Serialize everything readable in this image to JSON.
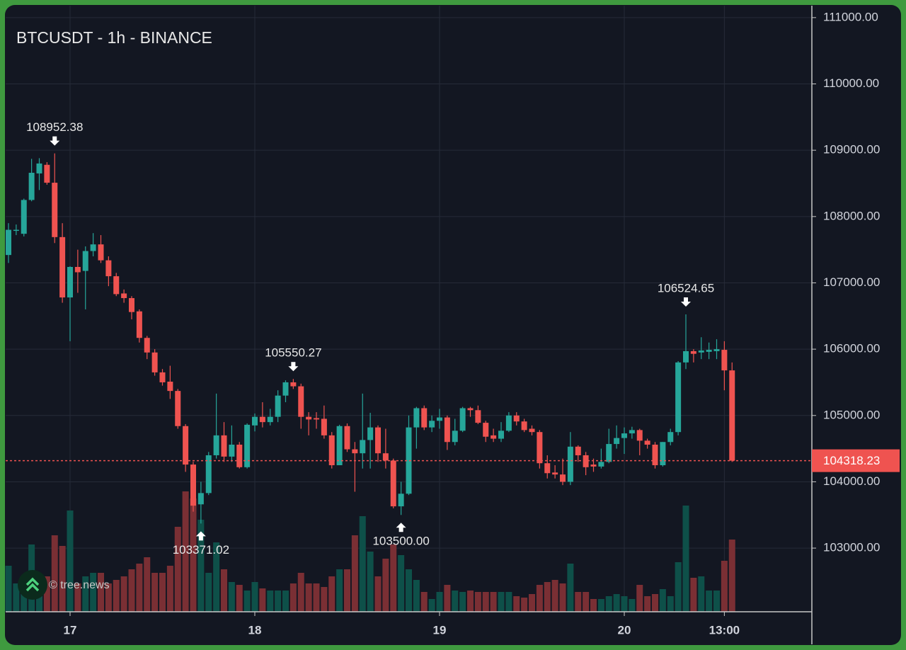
{
  "chart_data": {
    "type": "candlestick",
    "title": "BTCUSDT - 1h - BINANCE",
    "watermark": "© tree.news",
    "categories": [
      null,
      null,
      null,
      null,
      null,
      null,
      null,
      null,
      "17",
      null,
      null,
      null,
      null,
      null,
      null,
      null,
      null,
      null,
      null,
      null,
      null,
      null,
      null,
      null,
      null,
      null,
      null,
      null,
      null,
      null,
      null,
      null,
      "18",
      null,
      null,
      null,
      null,
      null,
      null,
      null,
      null,
      null,
      null,
      null,
      null,
      null,
      null,
      null,
      null,
      null,
      null,
      null,
      null,
      null,
      null,
      null,
      "19",
      null,
      null,
      null,
      null,
      null,
      null,
      null,
      null,
      null,
      null,
      null,
      null,
      null,
      null,
      null,
      null,
      null,
      null,
      null,
      null,
      null,
      null,
      null,
      "20",
      null,
      null,
      null,
      null,
      null,
      null,
      null,
      null,
      null,
      null,
      null,
      null,
      "13:00",
      null
    ],
    "open": [
      107420,
      107790,
      107740,
      108250,
      108650,
      108780,
      108510,
      107690,
      106780,
      107240,
      107180,
      107480,
      107580,
      107340,
      107100,
      106840,
      106770,
      106570,
      106170,
      105950,
      105650,
      105510,
      105370,
      104840,
      104260,
      103660,
      103830,
      104400,
      104700,
      104380,
      104560,
      104220,
      104850,
      104980,
      104900,
      104980,
      105300,
      105500,
      105440,
      104980,
      104960,
      104950,
      104700,
      104250,
      104840,
      104490,
      104430,
      104630,
      104820,
      104430,
      104320,
      103630,
      103820,
      104820,
      105110,
      104820,
      104920,
      104970,
      104600,
      104770,
      105110,
      105080,
      104890,
      104700,
      104650,
      104770,
      105000,
      104910,
      104800,
      104750,
      104280,
      104140,
      104110,
      104000,
      104530,
      104400,
      104260,
      104230,
      104300,
      104570,
      104660,
      104730,
      104780,
      104620,
      104560,
      104250,
      104600,
      104750,
      105800,
      105970,
      105950,
      105960,
      105970,
      105990,
      105680
    ],
    "high": [
      107900,
      107880,
      108270,
      108870,
      108880,
      108820,
      108952.38,
      107900,
      107250,
      107500,
      107550,
      107750,
      107720,
      107400,
      107150,
      106900,
      106800,
      106600,
      106200,
      106000,
      105700,
      105750,
      105400,
      104870,
      104300,
      104000,
      104450,
      105330,
      104900,
      104850,
      104600,
      104880,
      105030,
      105200,
      105100,
      105380,
      105530,
      105550.27,
      105480,
      105050,
      105050,
      105150,
      104750,
      104860,
      104880,
      104600,
      105330,
      105040,
      104850,
      104800,
      104350,
      104000,
      105000,
      105130,
      105150,
      105000,
      105100,
      105000,
      104950,
      105130,
      105130,
      105150,
      104920,
      104800,
      104900,
      105050,
      105050,
      104950,
      104850,
      104780,
      104400,
      104250,
      104350,
      104750,
      104550,
      104450,
      104350,
      104500,
      104800,
      104850,
      104820,
      104830,
      104800,
      104650,
      104600,
      104600,
      104800,
      105820,
      106524.65,
      106000,
      106180,
      106100,
      106150,
      106120,
      105800
    ],
    "low": [
      107300,
      107720,
      107700,
      108230,
      108400,
      108480,
      107600,
      106700,
      106120,
      106850,
      106600,
      107400,
      107300,
      106950,
      106800,
      106700,
      106450,
      106100,
      105850,
      105600,
      105450,
      105250,
      104800,
      104150,
      103550,
      103371.02,
      103800,
      104350,
      104300,
      104300,
      104200,
      104200,
      104760,
      104820,
      104850,
      104900,
      105200,
      105400,
      104800,
      104700,
      104800,
      104650,
      104200,
      104250,
      104450,
      103850,
      104200,
      104200,
      104300,
      104200,
      103600,
      103500,
      103800,
      104500,
      104780,
      104750,
      104800,
      104480,
      104550,
      104750,
      104980,
      104870,
      104600,
      104600,
      104600,
      104750,
      104850,
      104750,
      104700,
      104200,
      104050,
      104050,
      103950,
      103950,
      104300,
      104100,
      104150,
      104200,
      104280,
      104500,
      104420,
      104650,
      104400,
      104500,
      104200,
      104230,
      104550,
      104700,
      105700,
      105800,
      105850,
      105850,
      105850,
      105380,
      104300
    ],
    "close": [
      107800,
      107800,
      108250,
      108660,
      108800,
      108510,
      107690,
      106780,
      107240,
      107160,
      107480,
      107580,
      107340,
      107100,
      106830,
      106770,
      106560,
      106170,
      105950,
      105650,
      105500,
      105370,
      104840,
      104260,
      103640,
      103830,
      104400,
      104700,
      104380,
      104560,
      104220,
      104860,
      104980,
      104900,
      104980,
      105300,
      105500,
      105440,
      104980,
      104940,
      104940,
      104700,
      104250,
      104840,
      104490,
      104430,
      104630,
      104820,
      104430,
      104320,
      103630,
      103820,
      104820,
      105110,
      104820,
      104920,
      104970,
      104600,
      104770,
      105110,
      105080,
      104890,
      104680,
      104650,
      104770,
      105000,
      104910,
      104780,
      104750,
      104280,
      104130,
      104110,
      104000,
      104530,
      104400,
      104220,
      104230,
      104300,
      104570,
      104660,
      104730,
      104780,
      104620,
      104560,
      104250,
      104600,
      104750,
      105800,
      105970,
      105930,
      105980,
      105990,
      106000,
      105680,
      104318.23
    ],
    "volume": [
      65,
      40,
      50,
      95,
      50,
      50,
      108,
      93,
      143,
      40,
      50,
      55,
      55,
      40,
      45,
      50,
      60,
      68,
      77,
      55,
      55,
      65,
      120,
      170,
      160,
      130,
      55,
      98,
      60,
      42,
      38,
      30,
      42,
      33,
      30,
      30,
      30,
      40,
      55,
      40,
      40,
      35,
      50,
      60,
      60,
      108,
      135,
      85,
      50,
      75,
      95,
      80,
      60,
      45,
      28,
      18,
      28,
      38,
      30,
      28,
      30,
      28,
      28,
      28,
      28,
      28,
      22,
      20,
      25,
      38,
      42,
      45,
      40,
      68,
      28,
      28,
      18,
      18,
      22,
      25,
      22,
      18,
      38,
      22,
      25,
      32,
      22,
      70,
      150,
      48,
      50,
      30,
      30,
      72,
      102
    ],
    "up_color": "#26a69a",
    "down_color": "#ef5350",
    "volume_up_color": "#0e5049",
    "volume_down_color": "#7a2f34",
    "ylim": [
      102040,
      111180
    ],
    "yticks": [
      {
        "value": 103000,
        "label": "103000.00"
      },
      {
        "value": 104000,
        "label": "104000.00"
      },
      {
        "value": 105000,
        "label": "105000.00"
      },
      {
        "value": 106000,
        "label": "106000.00"
      },
      {
        "value": 107000,
        "label": "107000.00"
      },
      {
        "value": 108000,
        "label": "108000.00"
      },
      {
        "value": 109000,
        "label": "109000.00"
      },
      {
        "value": 110000,
        "label": "110000.00"
      },
      {
        "value": 111000,
        "label": "111000.00"
      }
    ],
    "volume_lim": [
      0,
      180
    ],
    "grid": true,
    "last_price": {
      "value": 104318.23,
      "label": "104318.23"
    },
    "annotations": [
      {
        "candle": 6,
        "kind": "high",
        "value": 108952.38,
        "label": "108952.38"
      },
      {
        "candle": 25,
        "kind": "low",
        "value": 103371.02,
        "label": "103371.02"
      },
      {
        "candle": 37,
        "kind": "high",
        "value": 105550.27,
        "label": "105550.27"
      },
      {
        "candle": 51,
        "kind": "low",
        "value": 103500.0,
        "label": "103500.00"
      },
      {
        "candle": 88,
        "kind": "high",
        "value": 106524.65,
        "label": "106524.65"
      }
    ]
  }
}
